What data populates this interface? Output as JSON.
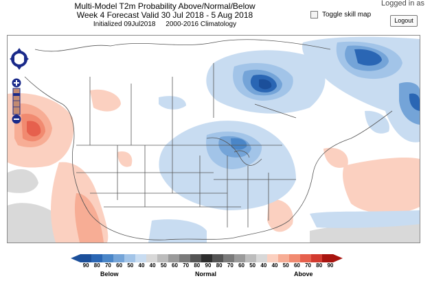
{
  "header": {
    "title_line1": "Multi-Model T2m Probability Above/Normal/Below",
    "title_line2": "Week 4 Forecast    Valid 30 Jul 2018 - 5 Aug 2018",
    "initialized": "Initialized 09Jul2018",
    "climatology": "2000-2016 Climatology"
  },
  "controls": {
    "toggle_skill_label": "Toggle skill map",
    "logged_in": "Logged in as",
    "logout_label": "Logout"
  },
  "map": {
    "pan_icon": "pan-arrows-icon",
    "zoom_in_icon": "plus-icon",
    "zoom_out_icon": "minus-icon"
  },
  "legend": {
    "numbers": [
      "90",
      "80",
      "70",
      "60",
      "50",
      "40",
      "40",
      "50",
      "60",
      "70",
      "80",
      "90",
      "80",
      "70",
      "60",
      "50",
      "40",
      "40",
      "50",
      "60",
      "70",
      "80",
      "90"
    ],
    "colors": [
      "#1b4f9a",
      "#2a66b4",
      "#4a86c8",
      "#74a4d8",
      "#a2c4e8",
      "#c8dcf1",
      "#d8d8d8",
      "#bcbcbc",
      "#9a9a9a",
      "#7a7a7a",
      "#545454",
      "#2e2e2e",
      "#545454",
      "#7a7a7a",
      "#9a9a9a",
      "#bcbcbc",
      "#d8d8d8",
      "#fbd0c0",
      "#f7ad95",
      "#f18a70",
      "#e6604d",
      "#d23a2f",
      "#a8140f"
    ],
    "below_label": "Below",
    "normal_label": "Normal",
    "above_label": "Above"
  }
}
